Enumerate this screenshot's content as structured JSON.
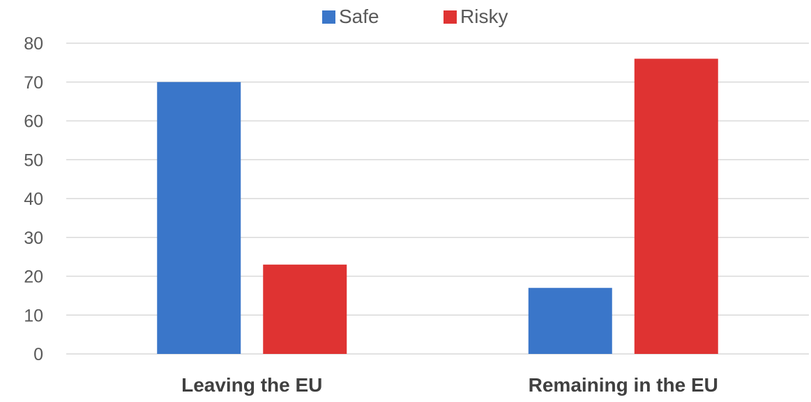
{
  "chart_data": {
    "type": "bar",
    "categories": [
      "Leaving the EU",
      "Remaining in the EU"
    ],
    "series": [
      {
        "name": "Safe",
        "values": [
          70,
          17
        ],
        "color": "#3a76c9"
      },
      {
        "name": "Risky",
        "values": [
          23,
          76
        ],
        "color": "#df3332"
      }
    ],
    "ylim": [
      0,
      80
    ],
    "yticks": [
      0,
      10,
      20,
      30,
      40,
      50,
      60,
      70,
      80
    ],
    "grid": true,
    "legend_position": "top-center",
    "title": "",
    "xlabel": "",
    "ylabel": ""
  }
}
